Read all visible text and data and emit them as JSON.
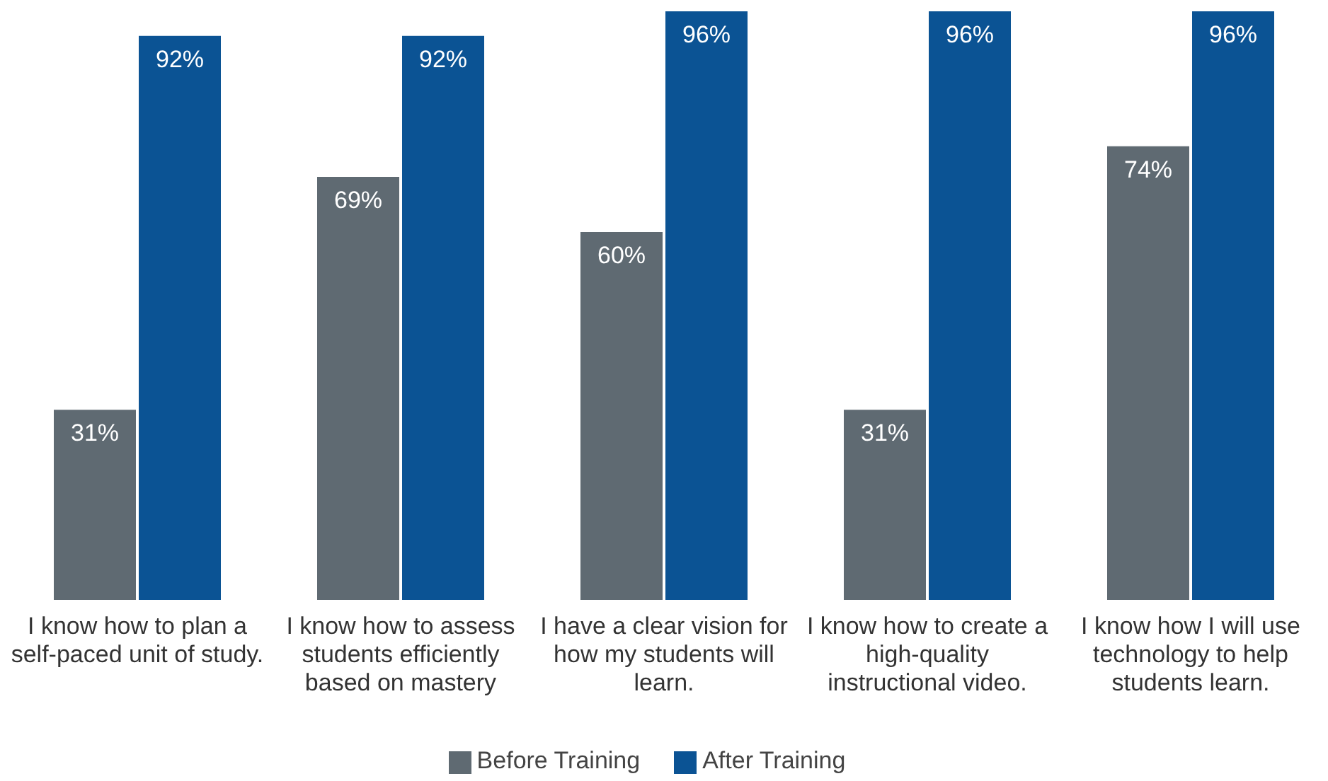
{
  "chart_data": {
    "type": "bar",
    "categories": [
      "I know how to plan a self-paced unit of study.",
      "I know how to assess students efficiently based on mastery",
      "I have a clear vision for how my students will learn.",
      "I know how to create a high-quality instructional video.",
      "I know how I will use technology to help students learn."
    ],
    "series": [
      {
        "name": "Before Training",
        "color": "#5f6a72",
        "values": [
          31,
          69,
          60,
          31,
          74
        ],
        "value_labels": [
          "31%",
          "69%",
          "60%",
          "31%",
          "74%"
        ]
      },
      {
        "name": "After Training",
        "color": "#0b5394",
        "values": [
          92,
          92,
          96,
          96,
          96
        ],
        "value_labels": [
          "92%",
          "92%",
          "96%",
          "96%",
          "96%"
        ]
      }
    ],
    "legend": "bottom"
  }
}
